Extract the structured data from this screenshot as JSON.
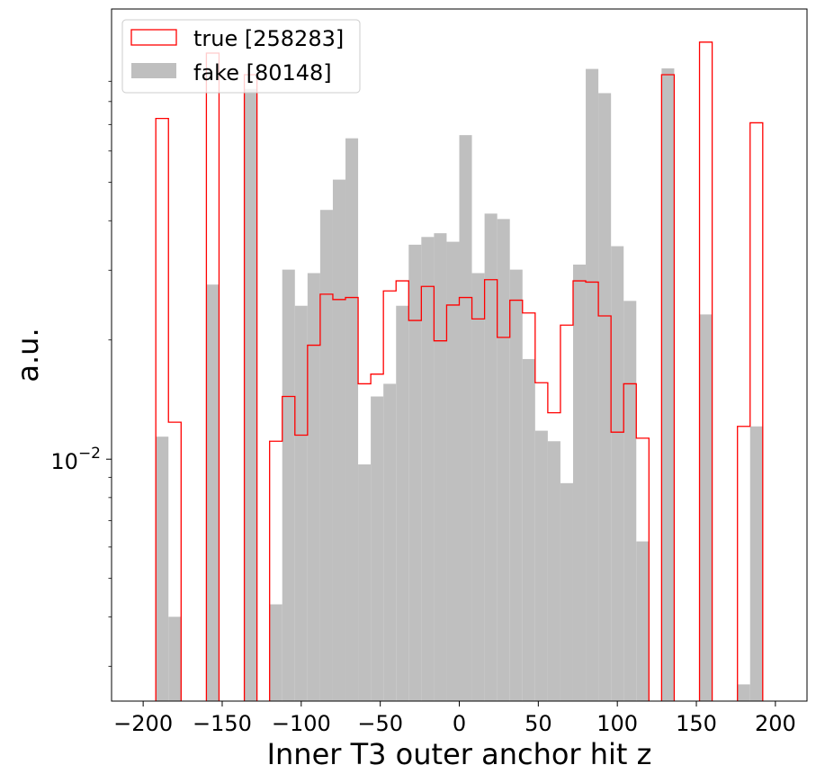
{
  "chart_data": {
    "type": "histogram",
    "xlabel": "Inner T3 outer anchor hit z",
    "ylabel": "a.u.",
    "yscale": "log",
    "xlim": [
      -220,
      220
    ],
    "ylim": [
      0.00245,
      0.137
    ],
    "bin_width": 8,
    "bin_start": -192,
    "x_ticks": [
      -200,
      -150,
      -100,
      -50,
      0,
      50,
      100,
      150,
      200
    ],
    "x_tick_labels": [
      "−200",
      "−150",
      "−100",
      "−50",
      "0",
      "50",
      "100",
      "150",
      "200"
    ],
    "y_tick_value": 0.01,
    "y_tick_label_base": "10",
    "y_tick_label_exp": "−2",
    "legend_position": "upper-left",
    "series": [
      {
        "name": "true [258283]",
        "style": "step",
        "color": "#ff0000",
        "bins": [
          [
            -192,
            -184,
            0.0725
          ],
          [
            -184,
            -176,
            0.0124
          ],
          [
            -160,
            -152,
            0.106
          ],
          [
            -136,
            -128,
            0.0935
          ],
          [
            -120,
            -112,
            0.0111
          ],
          [
            -112,
            -104,
            0.0144
          ],
          [
            -104,
            -96,
            0.0115
          ],
          [
            -96,
            -88,
            0.0194
          ],
          [
            -88,
            -80,
            0.0261
          ],
          [
            -80,
            -72,
            0.0253
          ],
          [
            -72,
            -64,
            0.0256
          ],
          [
            -64,
            -56,
            0.0155
          ],
          [
            -56,
            -48,
            0.0164
          ],
          [
            -48,
            -40,
            0.0266
          ],
          [
            -40,
            -32,
            0.0282
          ],
          [
            -32,
            -24,
            0.0224
          ],
          [
            -24,
            -16,
            0.0273
          ],
          [
            -16,
            -8,
            0.0199
          ],
          [
            -8,
            0,
            0.0245
          ],
          [
            0,
            8,
            0.0256
          ],
          [
            8,
            16,
            0.0226
          ],
          [
            16,
            24,
            0.0284
          ],
          [
            24,
            32,
            0.0203
          ],
          [
            32,
            40,
            0.0252
          ],
          [
            40,
            48,
            0.0234
          ],
          [
            48,
            56,
            0.0156
          ],
          [
            56,
            64,
            0.0131
          ],
          [
            64,
            72,
            0.0218
          ],
          [
            72,
            80,
            0.0282
          ],
          [
            80,
            88,
            0.028
          ],
          [
            88,
            96,
            0.023
          ],
          [
            96,
            104,
            0.0117
          ],
          [
            104,
            112,
            0.0155
          ],
          [
            112,
            120,
            0.0113
          ],
          [
            128,
            136,
            0.0935
          ],
          [
            152,
            160,
            0.113
          ],
          [
            176,
            184,
            0.0121
          ],
          [
            184,
            192,
            0.0707
          ]
        ]
      },
      {
        "name": "fake [80148]",
        "style": "filled",
        "color": "#bfbfbf",
        "bins": [
          [
            -192,
            -184,
            0.0114
          ],
          [
            -184,
            -176,
            0.004
          ],
          [
            -160,
            -152,
            0.0276
          ],
          [
            -136,
            -128,
            0.0861
          ],
          [
            -120,
            -112,
            0.0043
          ],
          [
            -112,
            -104,
            0.0301
          ],
          [
            -104,
            -96,
            0.0244
          ],
          [
            -96,
            -88,
            0.0295
          ],
          [
            -88,
            -80,
            0.0426
          ],
          [
            -80,
            -72,
            0.0508
          ],
          [
            -72,
            -64,
            0.0646
          ],
          [
            -64,
            -56,
            0.0097
          ],
          [
            -56,
            -48,
            0.0144
          ],
          [
            -48,
            -40,
            0.0155
          ],
          [
            -40,
            -32,
            0.0244
          ],
          [
            -32,
            -24,
            0.0348
          ],
          [
            -24,
            -16,
            0.0364
          ],
          [
            -16,
            -8,
            0.0372
          ],
          [
            -8,
            0,
            0.0354
          ],
          [
            0,
            8,
            0.0658
          ],
          [
            8,
            16,
            0.0295
          ],
          [
            16,
            24,
            0.0417
          ],
          [
            24,
            32,
            0.0404
          ],
          [
            32,
            40,
            0.0301
          ],
          [
            40,
            48,
            0.0179
          ],
          [
            48,
            56,
            0.0118
          ],
          [
            56,
            64,
            0.0111
          ],
          [
            64,
            72,
            0.0087
          ],
          [
            72,
            80,
            0.031
          ],
          [
            80,
            88,
            0.0967
          ],
          [
            88,
            96,
            0.084
          ],
          [
            96,
            104,
            0.0345
          ],
          [
            104,
            112,
            0.0251
          ],
          [
            112,
            120,
            0.0062
          ],
          [
            128,
            136,
            0.097
          ],
          [
            152,
            160,
            0.0232
          ],
          [
            176,
            184,
            0.0027
          ],
          [
            184,
            192,
            0.0121
          ]
        ]
      }
    ]
  }
}
